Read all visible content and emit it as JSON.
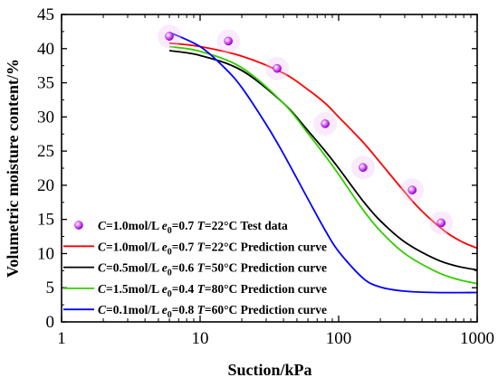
{
  "chart_data": {
    "type": "scatter",
    "xlabel": "Suction/kPa",
    "ylabel": "Volumetric moisture content/%",
    "xscale": "log",
    "xlim": [
      1,
      1000
    ],
    "ylim": [
      0,
      45
    ],
    "x_ticks": [
      1,
      10,
      100,
      1000
    ],
    "x_tick_labels": [
      "1",
      "10",
      "100",
      "1000"
    ],
    "y_ticks": [
      0,
      5,
      10,
      15,
      20,
      25,
      30,
      35,
      40,
      45
    ],
    "y_tick_labels": [
      "0",
      "5",
      "10",
      "15",
      "20",
      "25",
      "30",
      "35",
      "40",
      "45"
    ],
    "grid": false,
    "legend_position": "bottom-left",
    "series": [
      {
        "kind": "points",
        "legend": {
          "c": "C",
          "c_val": "=1.0mol/L ",
          "e": "e",
          "e_sub": "0",
          "e_val": "=0.7 ",
          "t": "T",
          "t_val": "=22°C Test data"
        },
        "color": "#cc33ff",
        "x": [
          6,
          16,
          36,
          80,
          150,
          340,
          550
        ],
        "y": [
          41.8,
          41.1,
          37.1,
          29.0,
          22.6,
          19.3,
          14.5
        ]
      },
      {
        "kind": "curve",
        "legend": {
          "c": "C",
          "c_val": "=1.0mol/L ",
          "e": "e",
          "e_sub": "0",
          "e_val": "=0.7 ",
          "t": "T",
          "t_val": "=22°C Prediction curve"
        },
        "color": "#ff0000",
        "x": [
          6,
          10,
          20,
          40,
          60,
          80,
          100,
          150,
          200,
          300,
          400,
          600,
          800,
          1000
        ],
        "y": [
          40.8,
          40.3,
          38.9,
          36.4,
          34.0,
          32.0,
          30.0,
          26.3,
          23.3,
          19.0,
          16.2,
          13.1,
          11.6,
          10.8
        ]
      },
      {
        "kind": "curve",
        "legend": {
          "c": "C",
          "c_val": "=0.5mol/L ",
          "e": "e",
          "e_sub": "0",
          "e_val": "=0.6 ",
          "t": "T",
          "t_val": "=50°C Prediction curve"
        },
        "color": "#000000",
        "x": [
          6,
          10,
          20,
          40,
          60,
          80,
          100,
          150,
          200,
          300,
          500,
          700,
          1000
        ],
        "y": [
          39.7,
          39.0,
          36.8,
          32.0,
          28.0,
          25.0,
          22.5,
          17.7,
          14.8,
          11.7,
          9.2,
          8.2,
          7.6
        ]
      },
      {
        "kind": "curve",
        "legend": {
          "c": "C",
          "c_val": "=1.5mol/L ",
          "e": "e",
          "e_sub": "0",
          "e_val": "=0.4 ",
          "t": "T",
          "t_val": "=80°C Prediction curve"
        },
        "color": "#33cc00",
        "x": [
          6,
          10,
          20,
          40,
          60,
          80,
          100,
          150,
          200,
          300,
          500,
          700,
          1000
        ],
        "y": [
          40.3,
          39.6,
          37.2,
          32.0,
          27.6,
          24.3,
          21.6,
          16.4,
          13.3,
          10.0,
          7.4,
          6.3,
          5.6
        ]
      },
      {
        "kind": "curve",
        "legend": {
          "c": "C",
          "c_val": "=0.1mol/L ",
          "e": "e",
          "e_sub": "0",
          "e_val": "=0.8 ",
          "t": "T",
          "t_val": "=60°C Prediction curve"
        },
        "color": "#0000ff",
        "x": [
          6,
          10,
          15,
          20,
          30,
          40,
          60,
          80,
          100,
          150,
          200,
          300,
          500,
          1000
        ],
        "y": [
          42.4,
          40.3,
          37.2,
          34.3,
          28.9,
          24.6,
          18.0,
          13.4,
          10.3,
          6.4,
          5.1,
          4.5,
          4.3,
          4.3
        ]
      }
    ]
  }
}
